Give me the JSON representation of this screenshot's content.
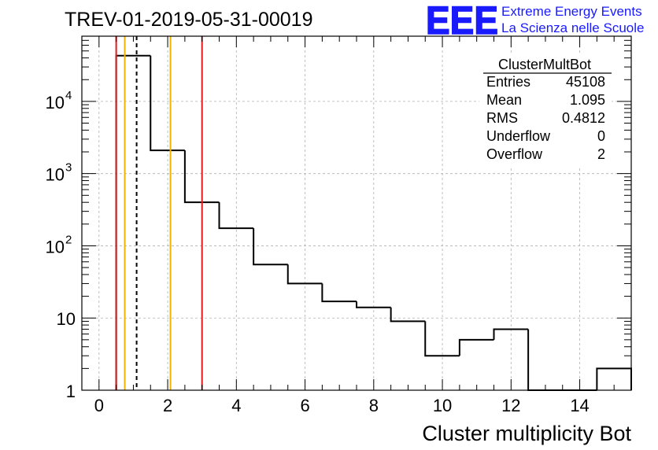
{
  "header": {
    "run_title": "TREV-01-2019-05-31-00019",
    "logo_text": "EEE",
    "logo_line1": "Extreme Energy Events",
    "logo_line2": "La Scienza nelle Scuole"
  },
  "stats_box": {
    "title": "ClusterMultBot",
    "rows": [
      {
        "label": "Entries",
        "value": "45108"
      },
      {
        "label": "Mean",
        "value": "1.095"
      },
      {
        "label": "RMS",
        "value": "0.4812"
      },
      {
        "label": "Underflow",
        "value": "0"
      },
      {
        "label": "Overflow",
        "value": "2"
      }
    ]
  },
  "colors": {
    "histogram": "#000000",
    "red_line": "#e41a1c",
    "orange_line": "#f0b400",
    "grid": "#b0b0b0",
    "logo_blue": "#1a1aff"
  },
  "chart_data": {
    "type": "histogram",
    "title": "TREV-01-2019-05-31-00019",
    "xlabel": "Cluster multiplicity Bot",
    "ylabel": "",
    "xlim": [
      -0.5,
      15.5
    ],
    "ylim": [
      1,
      80000
    ],
    "yscale": "log",
    "grid": true,
    "bins": [
      {
        "x": 1,
        "count": 43000
      },
      {
        "x": 2,
        "count": 2100
      },
      {
        "x": 3,
        "count": 400
      },
      {
        "x": 4,
        "count": 175
      },
      {
        "x": 5,
        "count": 55
      },
      {
        "x": 6,
        "count": 30
      },
      {
        "x": 7,
        "count": 17
      },
      {
        "x": 8,
        "count": 14
      },
      {
        "x": 9,
        "count": 9
      },
      {
        "x": 10,
        "count": 3
      },
      {
        "x": 11,
        "count": 5
      },
      {
        "x": 12,
        "count": 7
      },
      {
        "x": 13,
        "count": 0
      },
      {
        "x": 14,
        "count": 0
      },
      {
        "x": 15,
        "count": 2
      }
    ],
    "x_ticks": [
      {
        "value": 0,
        "label": "0"
      },
      {
        "value": 2,
        "label": "2"
      },
      {
        "value": 4,
        "label": "4"
      },
      {
        "value": 6,
        "label": "6"
      },
      {
        "value": 8,
        "label": "8"
      },
      {
        "value": 10,
        "label": "10"
      },
      {
        "value": 12,
        "label": "12"
      },
      {
        "value": 14,
        "label": "14"
      }
    ],
    "y_ticks": [
      {
        "value": 1,
        "label": "1",
        "exp": ""
      },
      {
        "value": 10,
        "label": "10",
        "exp": ""
      },
      {
        "value": 100,
        "label": "10",
        "exp": "2"
      },
      {
        "value": 1000,
        "label": "10",
        "exp": "3"
      },
      {
        "value": 10000,
        "label": "10",
        "exp": "4"
      }
    ],
    "vertical_lines": [
      {
        "x": 0.5,
        "color": "red",
        "style": "solid"
      },
      {
        "x": 0.75,
        "color": "orange",
        "style": "solid"
      },
      {
        "x": 1.095,
        "color": "black",
        "style": "dashed"
      },
      {
        "x": 2.08,
        "color": "orange",
        "style": "solid"
      },
      {
        "x": 3.0,
        "color": "red",
        "style": "solid"
      }
    ]
  }
}
